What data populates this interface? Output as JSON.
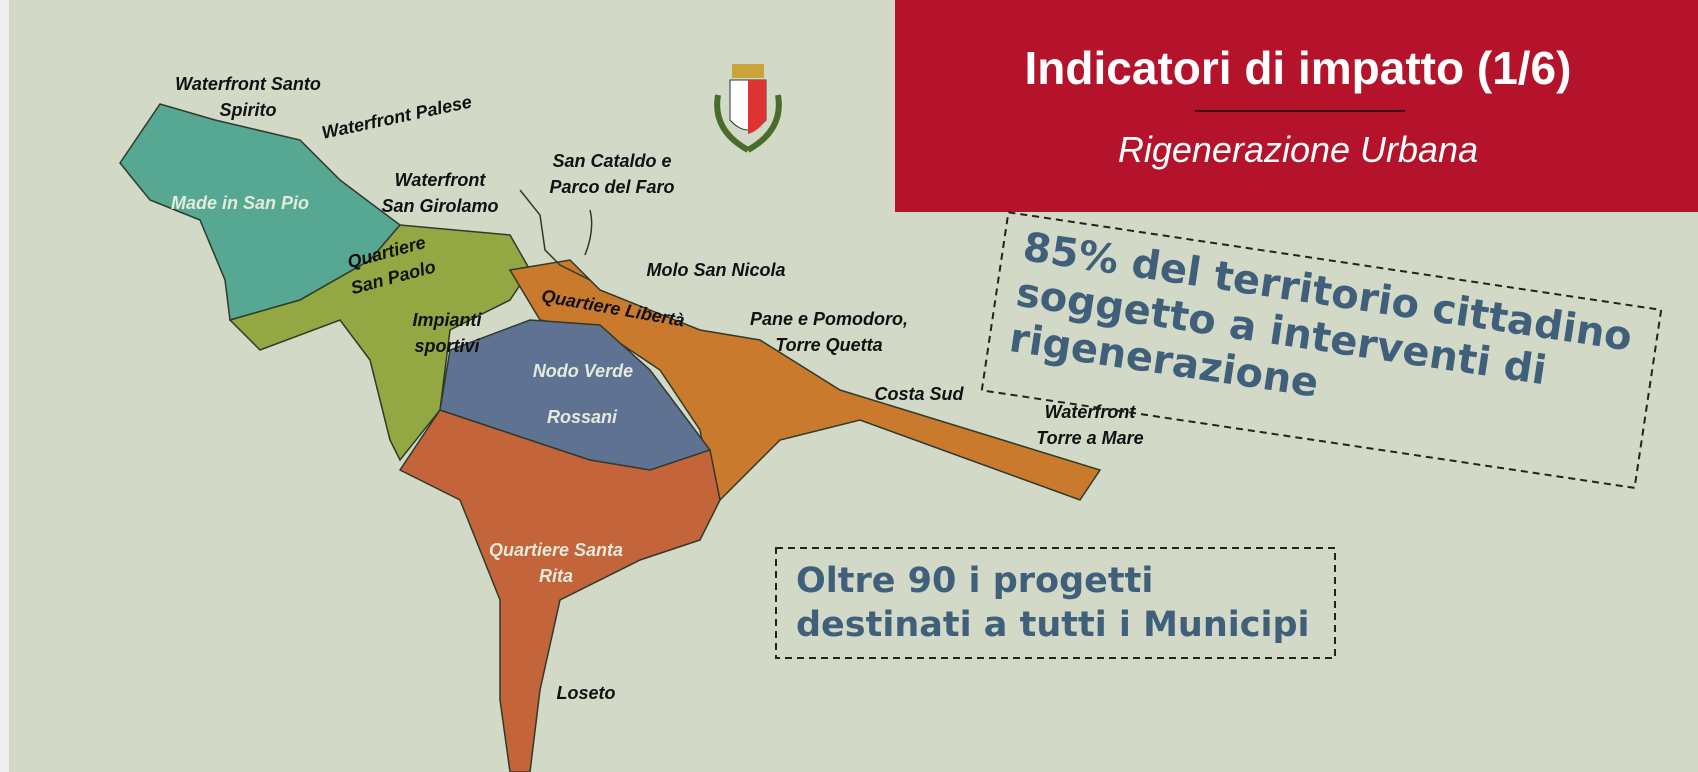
{
  "header": {
    "title": "Indicatori di impatto (1/6)",
    "subtitle": "Rigenerazione Urbana"
  },
  "callout_main": {
    "lines": [
      "85% del territorio cittadino",
      "soggetto a interventi di",
      "rigenerazione"
    ]
  },
  "callout_projects": {
    "lines": [
      "Oltre 90 i progetti",
      "destinati a tutti i Municipi"
    ]
  },
  "map": {
    "labels": [
      {
        "lines": [
          "Waterfront Santo",
          "Spirito"
        ]
      },
      {
        "lines": [
          "Waterfront Palese"
        ]
      },
      {
        "lines": [
          "Made in San Pio"
        ]
      },
      {
        "lines": [
          "Waterfront",
          "San Girolamo"
        ]
      },
      {
        "lines": [
          "San Cataldo e",
          "Parco del Faro"
        ]
      },
      {
        "lines": [
          "Quartiere",
          "San Paolo"
        ]
      },
      {
        "lines": [
          "Molo San Nicola"
        ]
      },
      {
        "lines": [
          "Quartiere Libertà"
        ]
      },
      {
        "lines": [
          "Impianti",
          "sportivi"
        ]
      },
      {
        "lines": [
          "Pane e Pomodoro,",
          "Torre Quetta"
        ]
      },
      {
        "lines": [
          "Nodo Verde"
        ]
      },
      {
        "lines": [
          "Rossani"
        ]
      },
      {
        "lines": [
          "Costa Sud"
        ]
      },
      {
        "lines": [
          "Waterfront",
          "Torre a Mare"
        ]
      },
      {
        "lines": [
          "Quartiere Santa",
          "Rita"
        ]
      },
      {
        "lines": [
          "Loseto"
        ]
      }
    ]
  }
}
